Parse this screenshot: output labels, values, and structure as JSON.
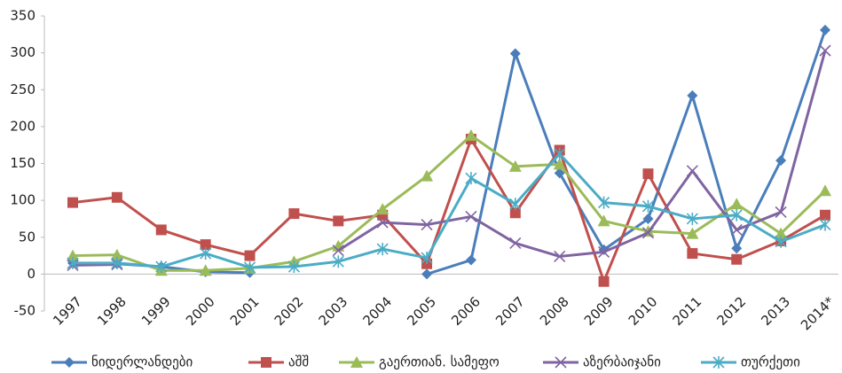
{
  "chart_data": {
    "type": "line",
    "categories": [
      "1997",
      "1998",
      "1999",
      "2000",
      "2001",
      "2002",
      "2003",
      "2004",
      "2005",
      "2006",
      "2007",
      "2008",
      "2009",
      "2010",
      "2011",
      "2012",
      "2013",
      "2014*"
    ],
    "ylim": [
      -50,
      350
    ],
    "yticks": [
      -50,
      0,
      50,
      100,
      150,
      200,
      250,
      300,
      350
    ],
    "legend": "bottom",
    "grid": false,
    "series": [
      {
        "name": "ნიდერლანდები",
        "color": "#4a7ebb",
        "marker": "diamond",
        "values": [
          15,
          14,
          10,
          3,
          2,
          null,
          null,
          null,
          0,
          19,
          299,
          137,
          33,
          75,
          242,
          35,
          154,
          331
        ]
      },
      {
        "name": "აშშ",
        "color": "#c0504d",
        "marker": "square",
        "values": [
          97,
          104,
          60,
          40,
          25,
          82,
          72,
          80,
          14,
          183,
          83,
          168,
          -10,
          136,
          28,
          20,
          45,
          80
        ]
      },
      {
        "name": "გაერთიან. სამეფო",
        "color": "#9bbb59",
        "marker": "triangle",
        "values": [
          25,
          26,
          5,
          5,
          8,
          17,
          38,
          88,
          133,
          188,
          146,
          149,
          72,
          58,
          55,
          95,
          55,
          113
        ]
      },
      {
        "name": "აზერბაიჯანი",
        "color": "#8064a2",
        "marker": "x",
        "values": [
          12,
          13,
          null,
          null,
          null,
          null,
          32,
          70,
          67,
          78,
          42,
          24,
          30,
          56,
          140,
          60,
          84,
          303
        ]
      },
      {
        "name": "თურქეთი",
        "color": "#4bacc6",
        "marker": "star",
        "values": [
          15,
          15,
          10,
          28,
          9,
          10,
          17,
          34,
          22,
          130,
          95,
          163,
          97,
          92,
          75,
          80,
          44,
          67
        ]
      }
    ]
  }
}
